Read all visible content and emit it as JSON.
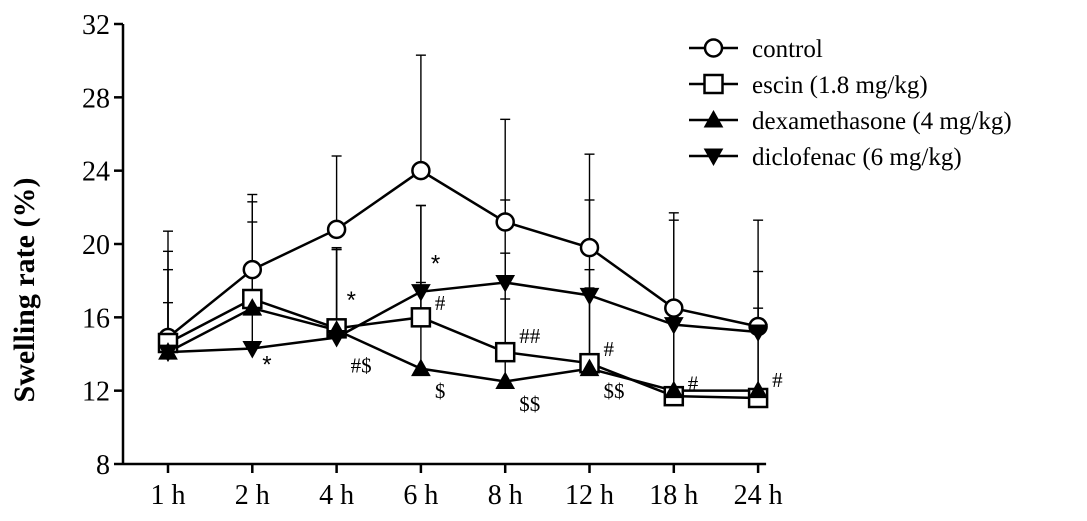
{
  "chart_data": {
    "type": "line",
    "title": "",
    "xlabel": "",
    "ylabel": "Swelling rate (%)",
    "categories": [
      "1 h",
      "2 h",
      "4 h",
      "6 h",
      "8 h",
      "12 h",
      "18 h",
      "24 h"
    ],
    "ylim": [
      8,
      32
    ],
    "yticks": [
      "8",
      "12",
      "16",
      "20",
      "24",
      "28",
      "32"
    ],
    "grid": false,
    "legend_position": "top-right",
    "series": [
      {
        "name": "control",
        "marker": "circle-open",
        "values": [
          14.9,
          18.6,
          20.8,
          24.0,
          21.2,
          19.8,
          16.5,
          15.5
        ],
        "error_upper": [
          20.7,
          22.7,
          24.8,
          30.3,
          26.8,
          24.9,
          21.7,
          21.3
        ]
      },
      {
        "name": "escin (1.8 mg/kg)",
        "marker": "square-open",
        "values": [
          14.6,
          17.0,
          15.4,
          16.0,
          14.1,
          13.5,
          11.7,
          11.6
        ],
        "error_upper": [
          19.6,
          22.3,
          19.8,
          22.1,
          19.5,
          18.6,
          15.8,
          15.8
        ]
      },
      {
        "name": "dexamethasone (4 mg/kg)",
        "marker": "triangle-up-filled",
        "values": [
          14.1,
          16.5,
          15.3,
          13.2,
          12.5,
          13.2,
          12.0,
          12.0
        ],
        "error_upper": [
          18.6,
          21.2,
          19.7,
          17.9,
          17.0,
          17.6,
          16.0,
          16.5
        ]
      },
      {
        "name": "diclofenac (6 mg/kg)",
        "marker": "triangle-down-filled",
        "values": [
          14.1,
          14.3,
          14.9,
          17.4,
          17.9,
          17.2,
          15.6,
          15.2
        ],
        "error_upper": [
          16.8,
          18.4,
          19.7,
          22.1,
          22.4,
          22.4,
          21.3,
          18.5
        ]
      }
    ],
    "annotations": [
      {
        "text": "*",
        "category": "2 h",
        "y": 13.0
      },
      {
        "text": "*",
        "category": "4 h",
        "y": 16.5
      },
      {
        "text": "#$",
        "category": "4 h",
        "y": 13.0
      },
      {
        "text": "*",
        "category": "6 h",
        "y": 18.5
      },
      {
        "text": "#",
        "category": "6 h",
        "y": 16.4
      },
      {
        "text": "$",
        "category": "6 h",
        "y": 11.6
      },
      {
        "text": "##",
        "category": "8 h",
        "y": 14.6
      },
      {
        "text": "$$",
        "category": "8 h",
        "y": 10.9
      },
      {
        "text": "#",
        "category": "12 h",
        "y": 13.9
      },
      {
        "text": "$$",
        "category": "12 h",
        "y": 11.6
      },
      {
        "text": "#",
        "category": "18 h",
        "y": 12.0
      },
      {
        "text": "#",
        "category": "24 h",
        "y": 12.2
      }
    ]
  }
}
